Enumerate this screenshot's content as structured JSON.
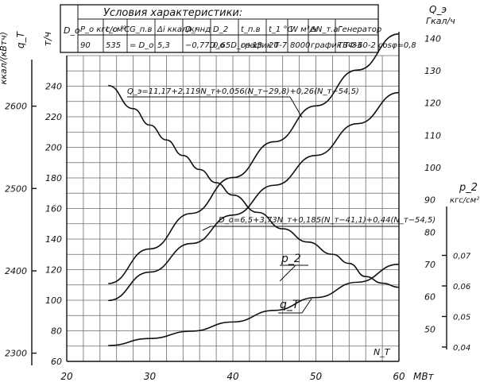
{
  "chart_data": {
    "type": "line",
    "x_axis": {
      "label": "МВт",
      "var_label": "N_T",
      "range": [
        20,
        60
      ],
      "ticks": [
        20,
        30,
        40,
        50,
        60
      ]
    },
    "y_axes": {
      "qT_kcal": {
        "unit": "ккал/(кВтч)",
        "symbol": "q_T",
        "range": [
          2290,
          2700
        ],
        "ticks": [
          2300,
          2400,
          2500,
          2600
        ]
      },
      "D_t_h": {
        "unit": "т/ч",
        "range": [
          60,
          260
        ],
        "ticks": [
          60,
          80,
          100,
          120,
          140,
          160,
          180,
          200,
          220,
          240
        ]
      },
      "Q_gcal": {
        "unit": "Гкал/ч",
        "symbol": "Q_э",
        "range": [
          40,
          145
        ],
        "ticks": [
          50,
          60,
          70,
          80,
          90,
          100,
          110,
          120,
          130,
          140
        ]
      },
      "p2_kgf": {
        "unit": "кгс/см²",
        "symbol": "p_2",
        "range": [
          0.034,
          0.086
        ],
        "ticks": [
          0.04,
          0.05,
          0.06,
          0.07
        ]
      }
    },
    "conditions_table": {
      "title": "Условия характеристики:",
      "headers": [
        "D_o",
        "P_o кгс/см²",
        "t_o °C",
        "G_п.в",
        "Δi ккал/кг",
        "D_чнд",
        "D_2",
        "t_п.в",
        "t_1 °C",
        "W м³/ч",
        "ΔN_т.а",
        "Генератор"
      ],
      "values": [
        "",
        "90",
        "535",
        "= D_o",
        "5,3",
        "−0,77D_o",
        "0,65D_o+13",
        "график Т-7",
        "20",
        "8000",
        "график Т-33",
        "ТВФ-60-2 cosφ=0,8"
      ]
    },
    "series": [
      {
        "name": "Q_э",
        "formula": "Q_э=11,17+2,119N_т+0,056(N_т−29,8)+0,26(N_т−54,5)",
        "axis": "Q_gcal",
        "x": [
          25,
          30,
          35,
          40,
          45,
          50,
          55,
          60
        ],
        "y": [
          64.1,
          74.8,
          85.8,
          96.9,
          108.0,
          119.1,
          130.2,
          141.4
        ]
      },
      {
        "name": "D_o",
        "formula": "D_o=6,5+3,73N_т+0,185(N_т−41,1)+0,44(N_т−54,5)",
        "axis": "D_t_h",
        "x": [
          25,
          30,
          35,
          40,
          45,
          50,
          55,
          60
        ],
        "y": [
          99.8,
          118.4,
          137.1,
          155.7,
          175.2,
          194.7,
          215.5,
          235.8
        ]
      },
      {
        "name": "q_T",
        "axis": "qT_kcal",
        "x": [
          25,
          28,
          30,
          32,
          34,
          36,
          38,
          40,
          43,
          46,
          49,
          52,
          54,
          56,
          58,
          60
        ],
        "y": [
          2625,
          2597,
          2577,
          2559,
          2540,
          2523,
          2507,
          2492,
          2471,
          2451,
          2435,
          2420,
          2409,
          2393,
          2385,
          2380
        ]
      },
      {
        "name": "p_2",
        "axis": "p2_kgf",
        "x": [
          25,
          30,
          35,
          40,
          45,
          50,
          55,
          60
        ],
        "y": [
          0.0405,
          0.0428,
          0.0452,
          0.0482,
          0.052,
          0.0562,
          0.0612,
          0.0671
        ]
      }
    ]
  }
}
